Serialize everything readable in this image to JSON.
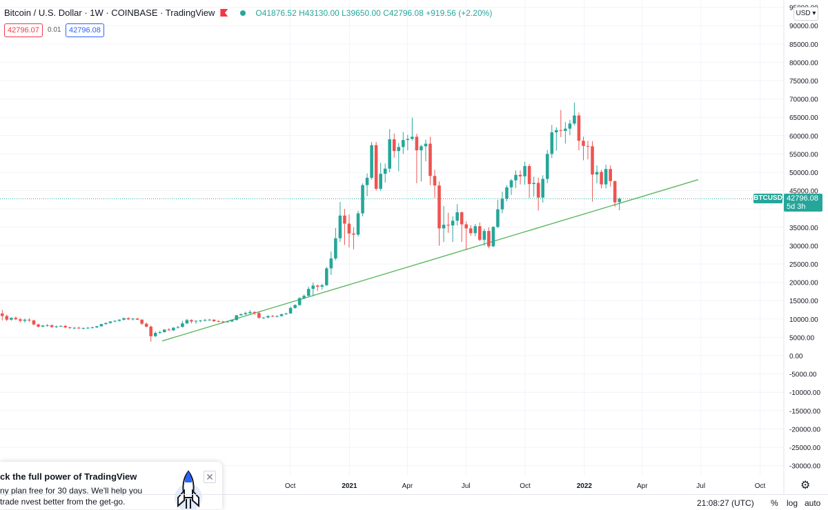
{
  "header": {
    "title": "Bitcoin / U.S. Dollar · 1W · COINBASE · TradingView",
    "ohlc": "O41876.52  H43130.00  L39650.00  C42796.08  +919.56 (+2.20%)",
    "sell_price": "42796.07",
    "spread": "0.01",
    "buy_price": "42796.08"
  },
  "price_scale": {
    "currency": "USD",
    "currency_label": "USD ▾"
  },
  "last_price": {
    "symbol": "BTCUSD",
    "price": "42796.08",
    "countdown": "5d 3h"
  },
  "promo": {
    "title": "ck the full power of TradingView",
    "body": "ny plan free for 30 days. We'll help you trade nvest better from the get-go.",
    "close_label": "✕"
  },
  "bottom_bar": {
    "clock": "21:08:27 (UTC)",
    "percent_label": "%",
    "log_label": "log",
    "auto_label": "auto"
  },
  "icons": {
    "settings": "gear-icon",
    "close": "close-icon",
    "rocket": "rocket-icon",
    "flag": "flag-icon"
  },
  "colors": {
    "up": "#26a69a",
    "down": "#ef5350",
    "trendline": "#66bb6a",
    "accent": "#2962ff"
  },
  "chart_data": {
    "type": "candlestick",
    "symbol": "BTCUSD",
    "exchange": "COINBASE",
    "interval": "1W",
    "ylim": [
      -30000,
      95000
    ],
    "y_ticks": [
      95000,
      90000,
      85000,
      80000,
      75000,
      70000,
      65000,
      60000,
      55000,
      50000,
      45000,
      40000,
      35000,
      30000,
      25000,
      20000,
      15000,
      10000,
      5000,
      0,
      -5000,
      -10000,
      -15000,
      -20000,
      -25000,
      -30000
    ],
    "y_tick_labels": [
      "95000.00",
      "90000.00",
      "85000.00",
      "80000.00",
      "75000.00",
      "70000.00",
      "65000.00",
      "60000.00",
      "55000.00",
      "50000.00",
      "45000.00",
      "40000.00",
      "35000.00",
      "30000.00",
      "25000.00",
      "20000.00",
      "15000.00",
      "10000.00",
      "5000.00",
      "0.00",
      "-5000.00",
      "-10000.00",
      "-15000.00",
      "-20000.00",
      "-25000.00",
      "-30000.00"
    ],
    "x_axis": {
      "start": "2019-07-08",
      "end": "2022-11-07"
    },
    "x_ticks": [
      {
        "date": "2020-10-01",
        "label": "Oct"
      },
      {
        "date": "2021-01-01",
        "label": "2021"
      },
      {
        "date": "2021-04-01",
        "label": "Apr"
      },
      {
        "date": "2021-07-01",
        "label": "Jul"
      },
      {
        "date": "2021-10-01",
        "label": "Oct"
      },
      {
        "date": "2022-01-01",
        "label": "2022"
      },
      {
        "date": "2022-04-01",
        "label": "Apr"
      },
      {
        "date": "2022-07-01",
        "label": "Jul"
      },
      {
        "date": "2022-10-01",
        "label": "Oct"
      }
    ],
    "first_candle": "2019-07-08",
    "candles": [
      [
        11500,
        12500,
        9600,
        10800
      ],
      [
        10800,
        11200,
        9400,
        9800
      ],
      [
        9800,
        10500,
        9500,
        10300
      ],
      [
        10300,
        10700,
        9700,
        9900
      ],
      [
        9900,
        10300,
        9100,
        9500
      ],
      [
        9500,
        10100,
        9000,
        9800
      ],
      [
        9800,
        10200,
        9200,
        9600
      ],
      [
        9600,
        9800,
        8300,
        8500
      ],
      [
        8500,
        8700,
        7700,
        7900
      ],
      [
        7900,
        8400,
        7700,
        8200
      ],
      [
        8200,
        8600,
        7900,
        8300
      ],
      [
        8300,
        8500,
        7600,
        7800
      ],
      [
        7800,
        8200,
        7500,
        8000
      ],
      [
        8000,
        8300,
        7800,
        8100
      ],
      [
        8100,
        8400,
        7500,
        7700
      ],
      [
        7700,
        7900,
        7300,
        7500
      ],
      [
        7500,
        7800,
        7200,
        7600
      ],
      [
        7600,
        7900,
        7300,
        7400
      ],
      [
        7400,
        7700,
        7200,
        7500
      ],
      [
        7500,
        7800,
        7300,
        7600
      ],
      [
        7600,
        7900,
        7400,
        7700
      ],
      [
        7700,
        8100,
        7500,
        8000
      ],
      [
        8000,
        8700,
        7900,
        8600
      ],
      [
        8600,
        9000,
        8400,
        8900
      ],
      [
        8900,
        9400,
        8700,
        9300
      ],
      [
        9300,
        9600,
        9100,
        9500
      ],
      [
        9500,
        9900,
        9300,
        9800
      ],
      [
        9800,
        10400,
        9600,
        10200
      ],
      [
        10200,
        10500,
        9700,
        9900
      ],
      [
        9900,
        10200,
        9600,
        10100
      ],
      [
        10100,
        10300,
        9700,
        9800
      ],
      [
        9800,
        9900,
        8400,
        8700
      ],
      [
        8700,
        9000,
        7700,
        7900
      ],
      [
        7900,
        8200,
        3800,
        5300
      ],
      [
        5300,
        6600,
        5100,
        6200
      ],
      [
        6200,
        6800,
        5900,
        6400
      ],
      [
        6400,
        7200,
        6300,
        7100
      ],
      [
        7100,
        7500,
        6800,
        6900
      ],
      [
        6900,
        7800,
        6700,
        7600
      ],
      [
        7600,
        8100,
        7400,
        7800
      ],
      [
        7800,
        9500,
        7700,
        8800
      ],
      [
        8800,
        10000,
        8600,
        9700
      ],
      [
        9700,
        9900,
        8800,
        9300
      ],
      [
        9300,
        9600,
        8700,
        9500
      ],
      [
        9500,
        9700,
        9100,
        9600
      ],
      [
        9600,
        10000,
        9300,
        9700
      ],
      [
        9700,
        10000,
        9500,
        9800
      ],
      [
        9800,
        9900,
        9200,
        9400
      ],
      [
        9400,
        9700,
        9100,
        9300
      ],
      [
        9300,
        9500,
        9000,
        9200
      ],
      [
        9200,
        9400,
        9000,
        9300
      ],
      [
        9300,
        9800,
        9200,
        9700
      ],
      [
        9700,
        11100,
        9600,
        11000
      ],
      [
        11000,
        11500,
        10900,
        11300
      ],
      [
        11300,
        12000,
        11100,
        11600
      ],
      [
        11600,
        12400,
        11400,
        11900
      ],
      [
        11900,
        12100,
        11100,
        11600
      ],
      [
        11600,
        12000,
        10100,
        10300
      ],
      [
        10300,
        10500,
        10000,
        10400
      ],
      [
        10400,
        11000,
        10200,
        10800
      ],
      [
        10800,
        11100,
        10500,
        10700
      ],
      [
        10700,
        11000,
        10400,
        10800
      ],
      [
        10800,
        11400,
        10600,
        11300
      ],
      [
        11300,
        11700,
        11100,
        11500
      ],
      [
        11500,
        13400,
        11400,
        13000
      ],
      [
        13000,
        14000,
        12800,
        13800
      ],
      [
        13800,
        15900,
        13600,
        15700
      ],
      [
        15700,
        16700,
        15400,
        16300
      ],
      [
        16300,
        18800,
        16200,
        18200
      ],
      [
        18200,
        19900,
        16200,
        19100
      ],
      [
        19100,
        19400,
        17600,
        18800
      ],
      [
        18800,
        19600,
        18000,
        19200
      ],
      [
        19200,
        24200,
        19000,
        23800
      ],
      [
        23800,
        28400,
        22000,
        26500
      ],
      [
        26500,
        34800,
        26000,
        32000
      ],
      [
        32000,
        41900,
        31000,
        38200
      ],
      [
        38200,
        40000,
        30200,
        36000
      ],
      [
        36000,
        38500,
        29500,
        33300
      ],
      [
        33300,
        35000,
        29000,
        33000
      ],
      [
        33000,
        39500,
        32500,
        38800
      ],
      [
        38800,
        47000,
        38000,
        46500
      ],
      [
        46500,
        49700,
        43500,
        48500
      ],
      [
        48500,
        58300,
        48000,
        57400
      ],
      [
        57400,
        58300,
        45000,
        45500
      ],
      [
        45500,
        52600,
        44900,
        49600
      ],
      [
        49600,
        52400,
        47200,
        51000
      ],
      [
        51000,
        61800,
        50000,
        59000
      ],
      [
        59000,
        60600,
        54000,
        55800
      ],
      [
        55800,
        58000,
        50300,
        56900
      ],
      [
        56900,
        61000,
        55000,
        58800
      ],
      [
        58800,
        60200,
        56000,
        59100
      ],
      [
        59100,
        64900,
        58700,
        59700
      ],
      [
        59700,
        60500,
        47000,
        56000
      ],
      [
        56000,
        57500,
        47500,
        57100
      ],
      [
        57100,
        58900,
        53000,
        57800
      ],
      [
        57800,
        59700,
        46500,
        49000
      ],
      [
        49000,
        50700,
        43000,
        46400
      ],
      [
        46400,
        47500,
        30000,
        34700
      ],
      [
        34700,
        40800,
        31000,
        35700
      ],
      [
        35700,
        39000,
        33500,
        35500
      ],
      [
        35500,
        38000,
        31000,
        36800
      ],
      [
        36800,
        41300,
        35500,
        39100
      ],
      [
        39100,
        39300,
        31000,
        35800
      ],
      [
        35800,
        36600,
        28800,
        34700
      ],
      [
        34700,
        35600,
        32700,
        33400
      ],
      [
        33400,
        35900,
        32600,
        35300
      ],
      [
        35300,
        36300,
        31200,
        31600
      ],
      [
        31600,
        34600,
        30000,
        34000
      ],
      [
        34000,
        35000,
        29300,
        29800
      ],
      [
        29800,
        35300,
        29600,
        35100
      ],
      [
        35100,
        42500,
        34800,
        39900
      ],
      [
        39900,
        44700,
        38800,
        42800
      ],
      [
        42800,
        46500,
        42100,
        45900
      ],
      [
        45900,
        48200,
        43800,
        47800
      ],
      [
        47800,
        50500,
        45700,
        49300
      ],
      [
        49300,
        50500,
        46700,
        48900
      ],
      [
        48900,
        52900,
        46600,
        51700
      ],
      [
        51700,
        52200,
        43000,
        46800
      ],
      [
        46800,
        48800,
        43400,
        47100
      ],
      [
        47100,
        48500,
        39600,
        43100
      ],
      [
        43100,
        49200,
        41700,
        48200
      ],
      [
        48200,
        56100,
        47000,
        55000
      ],
      [
        55000,
        62900,
        53900,
        60900
      ],
      [
        60900,
        62300,
        55900,
        61500
      ],
      [
        61500,
        67000,
        59600,
        61300
      ],
      [
        61300,
        63700,
        57800,
        61900
      ],
      [
        61900,
        64300,
        60100,
        63300
      ],
      [
        63300,
        69000,
        62800,
        65500
      ],
      [
        65500,
        66300,
        56000,
        58600
      ],
      [
        58600,
        59700,
        53300,
        57200
      ],
      [
        57200,
        58600,
        53500,
        57100
      ],
      [
        57100,
        58500,
        42000,
        49400
      ],
      [
        49400,
        51900,
        47000,
        50100
      ],
      [
        50100,
        50700,
        45600,
        46700
      ],
      [
        46700,
        52100,
        45600,
        50900
      ],
      [
        50900,
        51900,
        46100,
        47600
      ],
      [
        47600,
        47700,
        40600,
        41800
      ],
      [
        41876.52,
        43130,
        39650,
        42796.08
      ]
    ],
    "trendline": {
      "x1": "2020-03-16",
      "y1": 4000,
      "x2": "2022-06-27",
      "y2": 48000
    },
    "last_price_line": 42796.08
  }
}
